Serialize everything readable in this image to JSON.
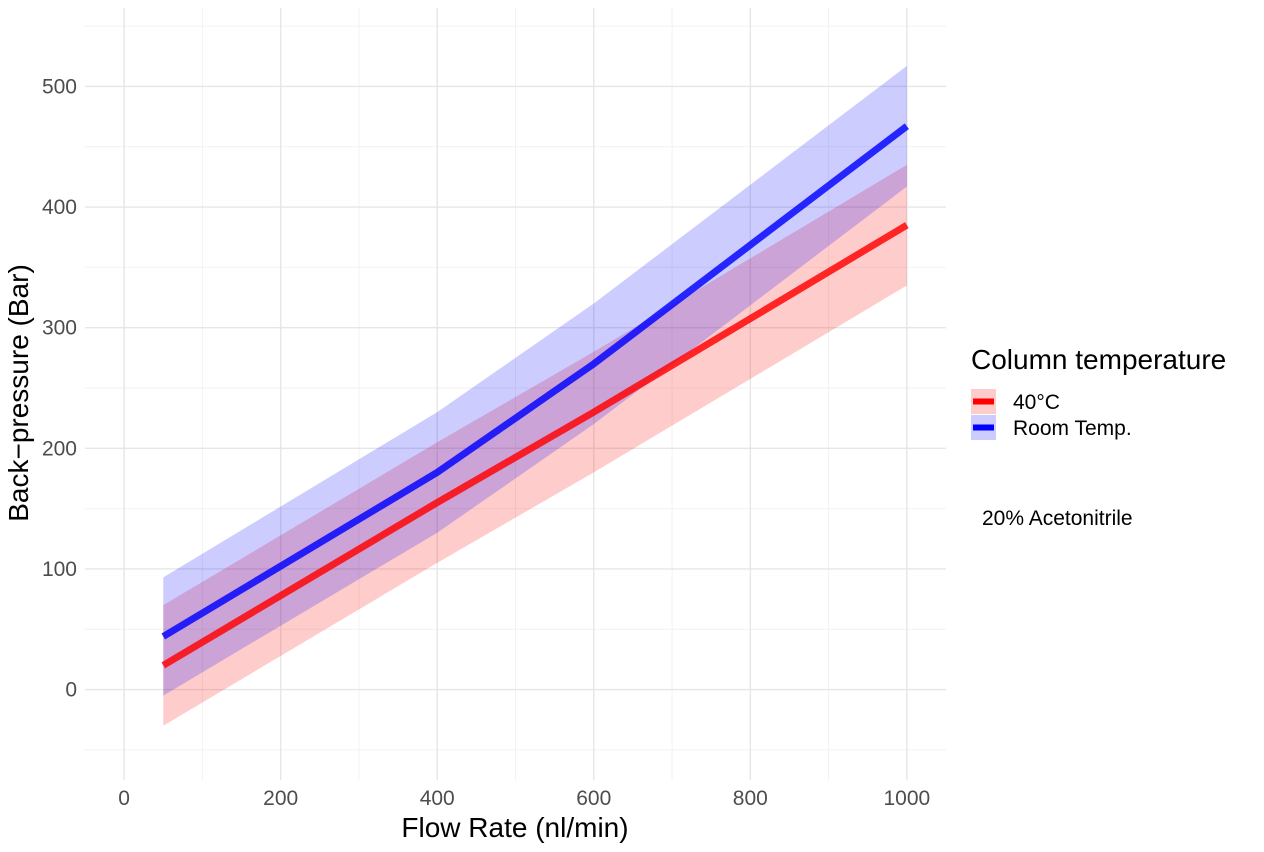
{
  "chart_data": {
    "type": "line",
    "title": "",
    "xlabel": "Flow Rate (nl/min)",
    "ylabel": "Back−pressure (Bar)",
    "xlim": [
      -50,
      1050
    ],
    "ylim": [
      -75,
      565
    ],
    "x_ticks": [
      0,
      200,
      400,
      600,
      800,
      1000
    ],
    "y_ticks": [
      0,
      100,
      200,
      300,
      400,
      500
    ],
    "x_tick_labels": [
      "0",
      "200",
      "400",
      "600",
      "800",
      "1000"
    ],
    "y_tick_labels": [
      "0",
      "100",
      "200",
      "300",
      "400",
      "500"
    ],
    "grid": true,
    "legend": {
      "title": "Column temperature",
      "placement": "right"
    },
    "series": [
      {
        "name": "40°C",
        "color": "#ff0000",
        "ribbon_color": "#ff0000",
        "x": [
          50,
          400,
          600,
          1000
        ],
        "y": [
          20,
          155,
          230,
          385
        ],
        "lower": [
          -30,
          105,
          180,
          335
        ],
        "upper": [
          70,
          205,
          280,
          435
        ]
      },
      {
        "name": "Room Temp.",
        "color": "#0000ff",
        "ribbon_color": "#0000ff",
        "x": [
          50,
          400,
          600,
          1000
        ],
        "y": [
          44,
          180,
          270,
          467
        ],
        "lower": [
          -5,
          130,
          220,
          417
        ],
        "upper": [
          93,
          230,
          320,
          517
        ]
      }
    ],
    "annotations": [
      {
        "text": "20% Acetonitrile",
        "position": "right"
      }
    ]
  }
}
